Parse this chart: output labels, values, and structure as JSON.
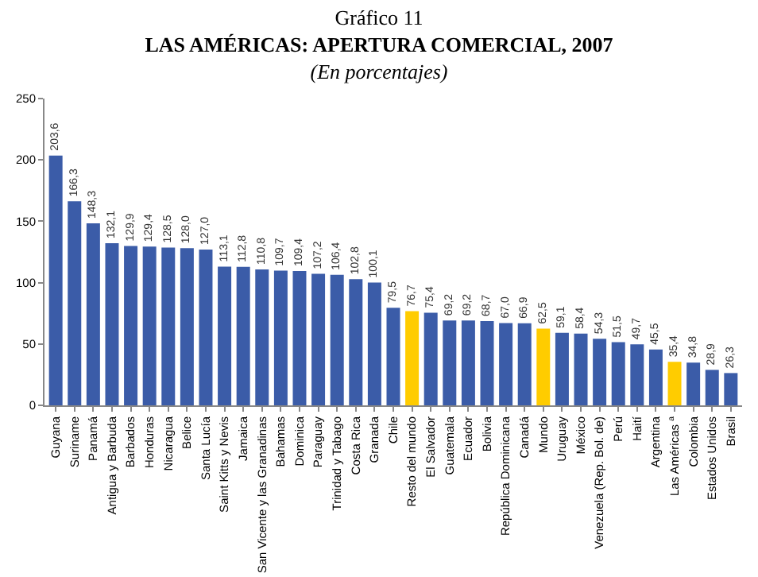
{
  "chart_data": {
    "type": "bar",
    "title": "Gráfico 11\nLAS AMÉRICAS: APERTURA COMERCIAL, 2007",
    "subtitle": "(En porcentajes)",
    "categories": [
      "Guyana",
      "Suriname",
      "Panamá",
      "Antigua y Barbuda",
      "Barbados",
      "Honduras",
      "Nicaragua",
      "Belice",
      "Santa Lucía",
      "Saint Kitts y Nevis",
      "Jamaica",
      "San Vicente y las Granadinas",
      "Bahamas",
      "Dominica",
      "Paraguay",
      "Trinidad y Tabago",
      "Costa Rica",
      "Granada",
      "Chile",
      "Resto del mundo",
      "El Salvador",
      "Guatemala",
      "Ecuador",
      "Bolivia",
      "República Dominicana",
      "Canadá",
      "Mundo",
      "Uruguay",
      "México",
      "Venezuela (Rep. Bol. de)",
      "Perú",
      "Haití",
      "Argentina",
      "Las Américas $^{a}$",
      "Colombia",
      "Estados Unidos",
      "Brasil"
    ],
    "values": [
      203.6,
      166.3,
      148.3,
      132.1,
      129.9,
      129.4,
      128.5,
      128.0,
      127.0,
      113.1,
      112.8,
      110.8,
      109.7,
      109.4,
      107.2,
      106.4,
      102.8,
      100.1,
      79.5,
      76.7,
      75.4,
      69.2,
      69.2,
      68.7,
      67.0,
      66.9,
      62.5,
      59.1,
      58.4,
      54.3,
      51.5,
      49.7,
      45.5,
      35.4,
      34.8,
      28.9,
      26.3
    ],
    "value_labels": [
      "203,6",
      "166,3",
      "148,3",
      "132,1",
      "129,9",
      "129,4",
      "128,5",
      "128,0",
      "127,0",
      "113,1",
      "112,8",
      "110,8",
      "109,7",
      "109,4",
      "107,2",
      "106,4",
      "102,8",
      "100,1",
      "79,5",
      "76,7",
      "75,4",
      "69,2",
      "69,2",
      "68,7",
      "67,0",
      "66,9",
      "62,5",
      "59,1",
      "58,4",
      "54,3",
      "51,5",
      "49,7",
      "45,5",
      "35,4",
      "34,8",
      "28,9",
      "26,3"
    ],
    "colors": [
      "#3b5ca8",
      "#3b5ca8",
      "#3b5ca8",
      "#3b5ca8",
      "#3b5ca8",
      "#3b5ca8",
      "#3b5ca8",
      "#3b5ca8",
      "#3b5ca8",
      "#3b5ca8",
      "#3b5ca8",
      "#3b5ca8",
      "#3b5ca8",
      "#3b5ca8",
      "#3b5ca8",
      "#3b5ca8",
      "#3b5ca8",
      "#3b5ca8",
      "#3b5ca8",
      "#ffcc00",
      "#3b5ca8",
      "#3b5ca8",
      "#3b5ca8",
      "#3b5ca8",
      "#3b5ca8",
      "#3b5ca8",
      "#ffcc00",
      "#3b5ca8",
      "#3b5ca8",
      "#3b5ca8",
      "#3b5ca8",
      "#3b5ca8",
      "#3b5ca8",
      "#ffcc00",
      "#3b5ca8",
      "#3b5ca8",
      "#3b5ca8"
    ],
    "ylim": [
      0,
      250
    ],
    "yticks": [
      0,
      50,
      100,
      150,
      200,
      250
    ],
    "grid": false
  }
}
